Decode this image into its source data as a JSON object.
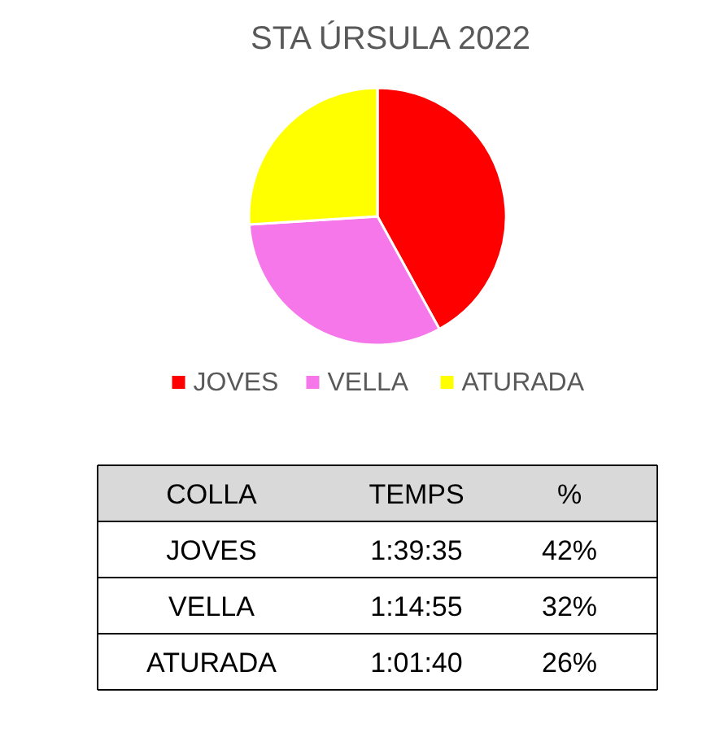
{
  "chart_data": [
    {
      "type": "pie",
      "title": "STA ÚRSULA 2022",
      "categories": [
        "JOVES",
        "VELLA",
        "ATURADA"
      ],
      "values": [
        42,
        32,
        26
      ],
      "colors": [
        "#ff0000",
        "#f577ea",
        "#ffff00"
      ],
      "legend": "bottom"
    },
    {
      "type": "other",
      "annotations": [
        "COLLA",
        "TEMPS",
        "%",
        "JOVES",
        "1:39:35",
        "42%",
        "VELLA",
        "1:14:55",
        "32%",
        "ATURADA",
        "1:01:40",
        "26%"
      ]
    }
  ]
}
